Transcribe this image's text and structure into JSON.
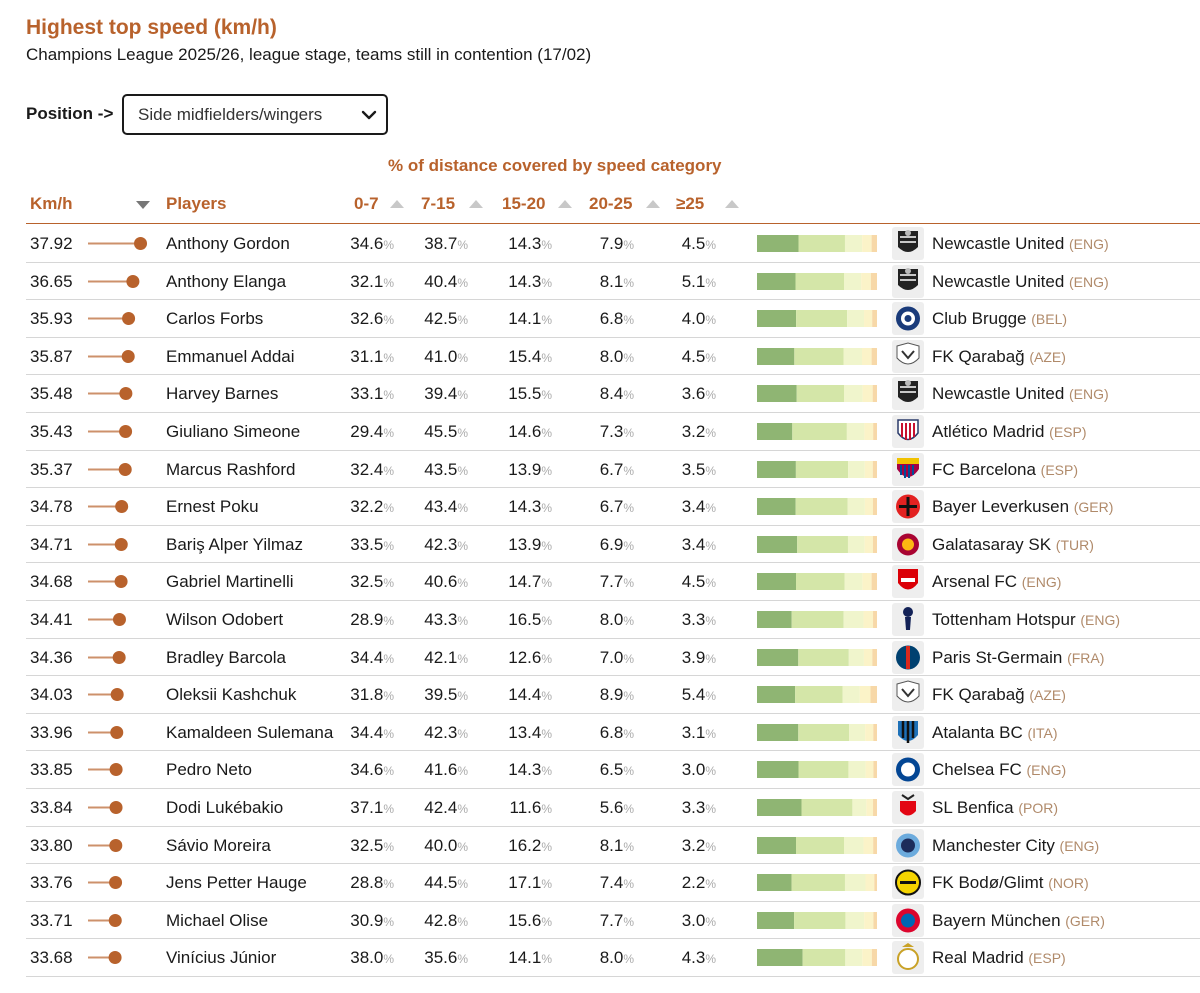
{
  "title": "Highest top speed (km/h)",
  "subtitle": "Champions League 2025/26, league stage, teams still in contention (17/02)",
  "position_filter": {
    "label": "Position ->",
    "selected": "Side midfielders/wingers"
  },
  "group_header": "% of distance covered by speed category",
  "columns": {
    "kmh": "Km/h",
    "players": "Players",
    "c0": "0-7",
    "c1": "7-15",
    "c2": "15-20",
    "c3": "20-25",
    "c4": "≥25"
  },
  "colors": {
    "accent": "#b8622c",
    "lollipop": "#b8622c",
    "band0": "#8fb573",
    "band1": "#d4e6a8",
    "band2": "#f0f5cc",
    "band3": "#fbf3c8",
    "band4": "#f7d8a8"
  },
  "pct_unit": "%",
  "chart_data": {
    "type": "table",
    "title": "Highest top speed (km/h)",
    "speed_range": [
      33.0,
      38.0
    ],
    "rows": [
      {
        "kmh": "37.92",
        "player": "Anthony Gordon",
        "p": [
          "34.6",
          "38.7",
          "14.3",
          "7.9",
          "4.5"
        ],
        "club": "Newcastle United",
        "country": "(ENG)",
        "crest": "newcastle-crest"
      },
      {
        "kmh": "36.65",
        "player": "Anthony Elanga",
        "p": [
          "32.1",
          "40.4",
          "14.3",
          "8.1",
          "5.1"
        ],
        "club": "Newcastle United",
        "country": "(ENG)",
        "crest": "newcastle-crest"
      },
      {
        "kmh": "35.93",
        "player": "Carlos Forbs",
        "p": [
          "32.6",
          "42.5",
          "14.1",
          "6.8",
          "4.0"
        ],
        "club": "Club Brugge",
        "country": "(BEL)",
        "crest": "brugge-crest"
      },
      {
        "kmh": "35.87",
        "player": "Emmanuel Addai",
        "p": [
          "31.1",
          "41.0",
          "15.4",
          "8.0",
          "4.5"
        ],
        "club": "FK Qarabağ",
        "country": "(AZE)",
        "crest": "qarabag-crest"
      },
      {
        "kmh": "35.48",
        "player": "Harvey Barnes",
        "p": [
          "33.1",
          "39.4",
          "15.5",
          "8.4",
          "3.6"
        ],
        "club": "Newcastle United",
        "country": "(ENG)",
        "crest": "newcastle-crest"
      },
      {
        "kmh": "35.43",
        "player": "Giuliano Simeone",
        "p": [
          "29.4",
          "45.5",
          "14.6",
          "7.3",
          "3.2"
        ],
        "club": "Atlético Madrid",
        "country": "(ESP)",
        "crest": "atletico-crest"
      },
      {
        "kmh": "35.37",
        "player": "Marcus Rashford",
        "p": [
          "32.4",
          "43.5",
          "13.9",
          "6.7",
          "3.5"
        ],
        "club": "FC Barcelona",
        "country": "(ESP)",
        "crest": "barcelona-crest"
      },
      {
        "kmh": "34.78",
        "player": "Ernest Poku",
        "p": [
          "32.2",
          "43.4",
          "14.3",
          "6.7",
          "3.4"
        ],
        "club": "Bayer Leverkusen",
        "country": "(GER)",
        "crest": "leverkusen-crest"
      },
      {
        "kmh": "34.71",
        "player": "Bariş Alper Yilmaz",
        "p": [
          "33.5",
          "42.3",
          "13.9",
          "6.9",
          "3.4"
        ],
        "club": "Galatasaray SK",
        "country": "(TUR)",
        "crest": "galatasaray-crest"
      },
      {
        "kmh": "34.68",
        "player": "Gabriel Martinelli",
        "p": [
          "32.5",
          "40.6",
          "14.7",
          "7.7",
          "4.5"
        ],
        "club": "Arsenal FC",
        "country": "(ENG)",
        "crest": "arsenal-crest"
      },
      {
        "kmh": "34.41",
        "player": "Wilson Odobert",
        "p": [
          "28.9",
          "43.3",
          "16.5",
          "8.0",
          "3.3"
        ],
        "club": "Tottenham Hotspur",
        "country": "(ENG)",
        "crest": "tottenham-crest"
      },
      {
        "kmh": "34.36",
        "player": "Bradley Barcola",
        "p": [
          "34.4",
          "42.1",
          "12.6",
          "7.0",
          "3.9"
        ],
        "club": "Paris St-Germain",
        "country": "(FRA)",
        "crest": "psg-crest"
      },
      {
        "kmh": "34.03",
        "player": "Oleksii Kashchuk",
        "p": [
          "31.8",
          "39.5",
          "14.4",
          "8.9",
          "5.4"
        ],
        "club": "FK Qarabağ",
        "country": "(AZE)",
        "crest": "qarabag-crest"
      },
      {
        "kmh": "33.96",
        "player": "Kamaldeen Sulemana",
        "p": [
          "34.4",
          "42.3",
          "13.4",
          "6.8",
          "3.1"
        ],
        "club": "Atalanta BC",
        "country": "(ITA)",
        "crest": "atalanta-crest"
      },
      {
        "kmh": "33.85",
        "player": "Pedro Neto",
        "p": [
          "34.6",
          "41.6",
          "14.3",
          "6.5",
          "3.0"
        ],
        "club": "Chelsea FC",
        "country": "(ENG)",
        "crest": "chelsea-crest"
      },
      {
        "kmh": "33.84",
        "player": "Dodi Lukébakio",
        "p": [
          "37.1",
          "42.4",
          "11.6",
          "5.6",
          "3.3"
        ],
        "club": "SL Benfica",
        "country": "(POR)",
        "crest": "benfica-crest"
      },
      {
        "kmh": "33.80",
        "player": "Sávio Moreira",
        "p": [
          "32.5",
          "40.0",
          "16.2",
          "8.1",
          "3.2"
        ],
        "club": "Manchester City",
        "country": "(ENG)",
        "crest": "mancity-crest"
      },
      {
        "kmh": "33.76",
        "player": "Jens Petter Hauge",
        "p": [
          "28.8",
          "44.5",
          "17.1",
          "7.4",
          "2.2"
        ],
        "club": "FK Bodø/Glimt",
        "country": "(NOR)",
        "crest": "bodo-crest"
      },
      {
        "kmh": "33.71",
        "player": "Michael Olise",
        "p": [
          "30.9",
          "42.8",
          "15.6",
          "7.7",
          "3.0"
        ],
        "club": "Bayern München",
        "country": "(GER)",
        "crest": "bayern-crest"
      },
      {
        "kmh": "33.68",
        "player": "Vinícius Júnior",
        "p": [
          "38.0",
          "35.6",
          "14.1",
          "8.0",
          "4.3"
        ],
        "club": "Real Madrid",
        "country": "(ESP)",
        "crest": "realmadrid-crest"
      }
    ]
  }
}
